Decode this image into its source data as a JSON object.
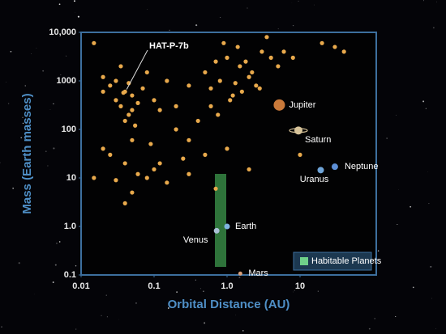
{
  "chart_data": {
    "type": "scatter",
    "xlabel": "Orbital Distance (AU)",
    "ylabel": "Mass (Earth masses)",
    "xscale": "log",
    "yscale": "log",
    "xlim": [
      0.01,
      100
    ],
    "ylim": [
      0.1,
      10000
    ],
    "xticks": [
      0.01,
      0.1,
      {
        "value": 1,
        "label": "1.0"
      },
      10
    ],
    "yticks": [
      {
        "value": 10000,
        "label": "10,000"
      },
      1000,
      100,
      10,
      {
        "value": 1,
        "label": "1.0"
      },
      0.1
    ],
    "series": [
      {
        "color": "#e8a94c",
        "x": [
          0.015,
          0.02,
          0.025,
          0.03,
          0.035,
          0.04,
          0.045,
          0.05,
          0.06,
          0.03,
          0.04,
          0.05,
          0.045,
          0.035,
          0.055,
          0.07,
          0.08,
          0.1,
          0.12,
          0.15,
          0.2,
          0.3,
          0.025,
          0.04,
          0.06,
          0.05,
          0.09,
          0.2,
          0.5,
          0.6,
          0.7,
          0.8,
          1.0,
          1.2,
          1.5,
          2.0,
          2.5,
          3.0,
          0.9,
          1.1,
          1.3,
          1.6,
          1.8,
          2.2,
          0.6,
          0.75,
          1.4,
          2.8,
          4.0,
          5.0,
          0.4,
          0.3,
          3.5,
          6,
          0.25,
          0.15,
          0.1,
          0.08,
          0.05,
          0.04,
          0.03,
          0.02,
          0.12,
          0.3,
          0.5,
          0.02,
          0.015,
          1.0,
          2.0,
          0.7,
          20,
          30,
          40,
          8,
          10
        ],
        "y": [
          6000,
          1200,
          800,
          400,
          300,
          600,
          200,
          500,
          350,
          1000,
          150,
          250,
          900,
          2000,
          120,
          700,
          1500,
          400,
          250,
          1000,
          300,
          800,
          30,
          20,
          12,
          60,
          50,
          100,
          1500,
          700,
          2500,
          1000,
          3000,
          500,
          2000,
          1200,
          800,
          4000,
          6000,
          400,
          900,
          600,
          2500,
          1500,
          300,
          200,
          5000,
          700,
          3000,
          2000,
          150,
          60,
          8000,
          4000,
          25,
          8,
          15,
          10,
          5,
          3,
          9,
          40,
          20,
          12,
          30,
          600,
          10,
          40,
          15,
          6,
          6000,
          5000,
          4000,
          3000,
          30
        ]
      }
    ],
    "planets": [
      {
        "label": "Jupiter",
        "x": 5.2,
        "y": 318,
        "color": "#c9793a"
      },
      {
        "label": "Saturn",
        "x": 9.5,
        "y": 95,
        "color": "#d8c49a"
      },
      {
        "label": "Uranus",
        "x": 19.2,
        "y": 14.5,
        "color": "#6fa4d8"
      },
      {
        "label": "Neptune",
        "x": 30,
        "y": 17,
        "color": "#5d8fd6"
      },
      {
        "label": "Earth",
        "x": 1,
        "y": 1,
        "color": "#7fb4e0"
      },
      {
        "label": "Venus",
        "x": 0.72,
        "y": 0.815,
        "color": "#a9c0d6"
      },
      {
        "label": "Mars",
        "x": 1.52,
        "y": 0.107,
        "color": "#d9a07a"
      }
    ],
    "annotation": {
      "label": "HAT-P-7b",
      "x": 0.038,
      "y": 570
    },
    "legend": "Habitable Planets"
  }
}
